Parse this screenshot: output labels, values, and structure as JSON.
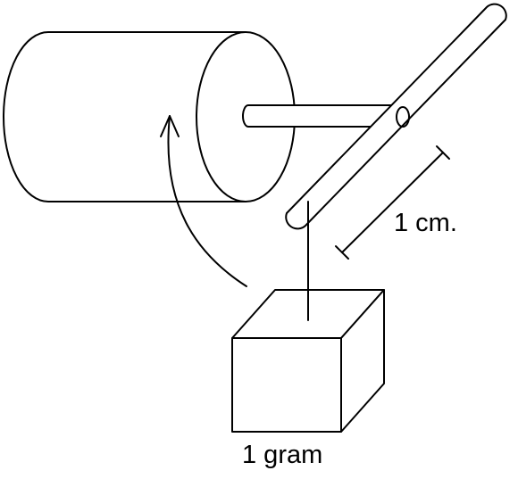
{
  "labels": {
    "length": "1 cm.",
    "mass": "1 gram"
  },
  "colors": {
    "line": "#000000",
    "background": "#ffffff"
  }
}
